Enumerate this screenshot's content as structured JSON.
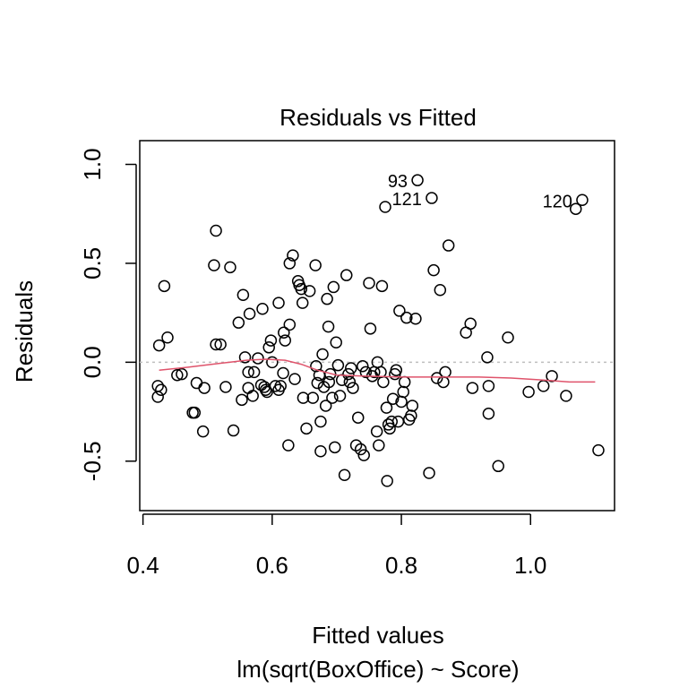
{
  "chart_data": {
    "type": "scatter",
    "title": "Residuals vs Fitted",
    "xlabel": "Fitted values",
    "subtitle": "lm(sqrt(BoxOffice) ~ Score)",
    "ylabel": "Residuals",
    "xlim": [
      0.395,
      1.13
    ],
    "ylim": [
      -0.75,
      1.12
    ],
    "x_ticks": [
      0.4,
      0.6,
      0.8,
      1.0
    ],
    "x_tick_labels": [
      "0.4",
      "0.6",
      "0.8",
      "1.0"
    ],
    "y_ticks": [
      -0.5,
      0.0,
      0.5,
      1.0
    ],
    "y_tick_labels": [
      "-0.5",
      "0.0",
      "0.5",
      "1.0"
    ],
    "reference_line_y": 0,
    "colors": {
      "points": "#000000",
      "smooth": "#df536b",
      "reference": "#bebebe"
    },
    "points": [
      [
        0.425,
        0.085
      ],
      [
        0.423,
        -0.12
      ],
      [
        0.423,
        -0.175
      ],
      [
        0.428,
        -0.14
      ],
      [
        0.433,
        0.385
      ],
      [
        0.438,
        0.125
      ],
      [
        0.453,
        -0.065
      ],
      [
        0.46,
        -0.06
      ],
      [
        0.477,
        -0.255
      ],
      [
        0.48,
        -0.255
      ],
      [
        0.483,
        -0.105
      ],
      [
        0.493,
        -0.35
      ],
      [
        0.495,
        -0.13
      ],
      [
        0.51,
        0.49
      ],
      [
        0.513,
        0.665
      ],
      [
        0.513,
        0.09
      ],
      [
        0.52,
        0.09
      ],
      [
        0.528,
        -0.125
      ],
      [
        0.535,
        0.48
      ],
      [
        0.54,
        -0.345
      ],
      [
        0.548,
        0.2
      ],
      [
        0.553,
        -0.19
      ],
      [
        0.555,
        0.34
      ],
      [
        0.558,
        0.025
      ],
      [
        0.563,
        -0.13
      ],
      [
        0.563,
        -0.05
      ],
      [
        0.565,
        0.245
      ],
      [
        0.57,
        -0.17
      ],
      [
        0.572,
        -0.05
      ],
      [
        0.578,
        0.02
      ],
      [
        0.583,
        -0.115
      ],
      [
        0.585,
        0.27
      ],
      [
        0.588,
        -0.125
      ],
      [
        0.59,
        -0.14
      ],
      [
        0.592,
        -0.15
      ],
      [
        0.595,
        0.075
      ],
      [
        0.598,
        0.11
      ],
      [
        0.6,
        0.0
      ],
      [
        0.605,
        -0.12
      ],
      [
        0.61,
        0.3
      ],
      [
        0.61,
        -0.14
      ],
      [
        0.613,
        -0.12
      ],
      [
        0.617,
        -0.055
      ],
      [
        0.618,
        0.15
      ],
      [
        0.62,
        0.11
      ],
      [
        0.625,
        -0.42
      ],
      [
        0.627,
        0.5
      ],
      [
        0.627,
        0.19
      ],
      [
        0.632,
        0.54
      ],
      [
        0.635,
        -0.085
      ],
      [
        0.64,
        0.41
      ],
      [
        0.642,
        0.39
      ],
      [
        0.645,
        0.37
      ],
      [
        0.647,
        0.3
      ],
      [
        0.648,
        -0.18
      ],
      [
        0.653,
        -0.335
      ],
      [
        0.658,
        0.36
      ],
      [
        0.663,
        -0.18
      ],
      [
        0.667,
        0.49
      ],
      [
        0.668,
        -0.02
      ],
      [
        0.67,
        -0.105
      ],
      [
        0.673,
        -0.065
      ],
      [
        0.675,
        -0.3
      ],
      [
        0.675,
        -0.45
      ],
      [
        0.678,
        0.04
      ],
      [
        0.68,
        -0.125
      ],
      [
        0.683,
        -0.22
      ],
      [
        0.685,
        0.32
      ],
      [
        0.687,
        0.18
      ],
      [
        0.688,
        -0.1
      ],
      [
        0.69,
        -0.06
      ],
      [
        0.693,
        -0.18
      ],
      [
        0.695,
        0.38
      ],
      [
        0.697,
        -0.43
      ],
      [
        0.699,
        0.1
      ],
      [
        0.702,
        -0.015
      ],
      [
        0.705,
        -0.17
      ],
      [
        0.708,
        -0.09
      ],
      [
        0.712,
        -0.57
      ],
      [
        0.715,
        0.44
      ],
      [
        0.718,
        -0.06
      ],
      [
        0.72,
        -0.1
      ],
      [
        0.722,
        -0.03
      ],
      [
        0.725,
        -0.13
      ],
      [
        0.73,
        -0.42
      ],
      [
        0.733,
        -0.28
      ],
      [
        0.737,
        -0.44
      ],
      [
        0.74,
        -0.02
      ],
      [
        0.742,
        -0.47
      ],
      [
        0.745,
        -0.05
      ],
      [
        0.75,
        0.4
      ],
      [
        0.752,
        0.17
      ],
      [
        0.755,
        -0.07
      ],
      [
        0.758,
        -0.05
      ],
      [
        0.762,
        -0.35
      ],
      [
        0.763,
        0.0
      ],
      [
        0.765,
        -0.42
      ],
      [
        0.768,
        -0.05
      ],
      [
        0.77,
        0.385
      ],
      [
        0.772,
        -0.1
      ],
      [
        0.775,
        0.785
      ],
      [
        0.777,
        -0.23
      ],
      [
        0.778,
        -0.6
      ],
      [
        0.78,
        -0.315
      ],
      [
        0.782,
        -0.335
      ],
      [
        0.785,
        -0.3
      ],
      [
        0.787,
        -0.185
      ],
      [
        0.79,
        -0.06
      ],
      [
        0.792,
        -0.04
      ],
      [
        0.795,
        -0.3
      ],
      [
        0.797,
        0.26
      ],
      [
        0.8,
        -0.2
      ],
      [
        0.803,
        -0.15
      ],
      [
        0.805,
        -0.1
      ],
      [
        0.808,
        0.225
      ],
      [
        0.812,
        -0.29
      ],
      [
        0.815,
        -0.27
      ],
      [
        0.817,
        -0.22
      ],
      [
        0.822,
        0.22
      ],
      [
        0.825,
        0.92
      ],
      [
        0.843,
        -0.56
      ],
      [
        0.847,
        0.83
      ],
      [
        0.85,
        0.465
      ],
      [
        0.855,
        -0.08
      ],
      [
        0.86,
        0.365
      ],
      [
        0.865,
        -0.1
      ],
      [
        0.868,
        -0.05
      ],
      [
        0.873,
        0.59
      ],
      [
        0.9,
        0.15
      ],
      [
        0.907,
        0.195
      ],
      [
        0.91,
        -0.13
      ],
      [
        0.933,
        0.025
      ],
      [
        0.935,
        -0.12
      ],
      [
        0.935,
        -0.26
      ],
      [
        0.95,
        -0.525
      ],
      [
        0.965,
        0.125
      ],
      [
        0.997,
        -0.15
      ],
      [
        1.02,
        -0.12
      ],
      [
        1.033,
        -0.07
      ],
      [
        1.055,
        -0.17
      ],
      [
        1.07,
        0.775
      ],
      [
        1.08,
        0.82
      ],
      [
        1.105,
        -0.445
      ]
    ],
    "labeled_points": [
      {
        "label": "93",
        "x": 0.825,
        "y": 0.92
      },
      {
        "label": "121",
        "x": 0.847,
        "y": 0.83
      },
      {
        "label": "120",
        "x": 1.08,
        "y": 0.82
      }
    ],
    "smooth_line": [
      [
        0.425,
        -0.04
      ],
      [
        0.47,
        -0.025
      ],
      [
        0.52,
        -0.005
      ],
      [
        0.56,
        0.01
      ],
      [
        0.59,
        0.015
      ],
      [
        0.62,
        0.01
      ],
      [
        0.645,
        -0.01
      ],
      [
        0.67,
        -0.04
      ],
      [
        0.7,
        -0.065
      ],
      [
        0.74,
        -0.07
      ],
      [
        0.8,
        -0.075
      ],
      [
        0.86,
        -0.075
      ],
      [
        0.92,
        -0.075
      ],
      [
        0.97,
        -0.08
      ],
      [
        1.02,
        -0.09
      ],
      [
        1.06,
        -0.1
      ],
      [
        1.1,
        -0.1
      ]
    ]
  }
}
